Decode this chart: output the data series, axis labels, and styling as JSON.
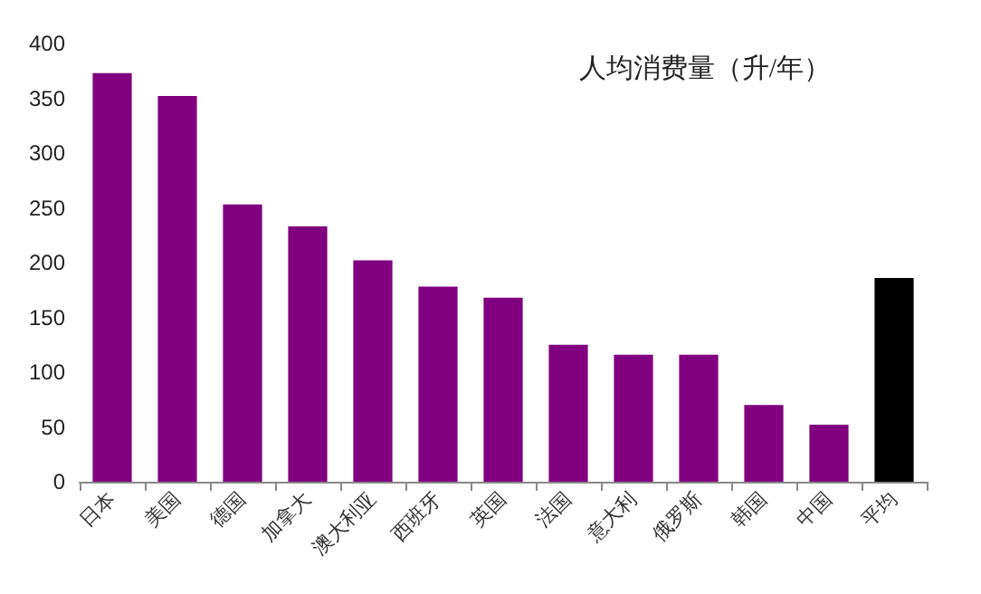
{
  "chart_data": {
    "type": "bar",
    "title": "人均消费量（升/年）",
    "categories": [
      "日本",
      "美国",
      "德国",
      "加拿大",
      "澳大利亚",
      "西班牙",
      "英国",
      "法国",
      "意大利",
      "俄罗斯",
      "韩国",
      "中国",
      "平均"
    ],
    "values": [
      373,
      352,
      253,
      233,
      202,
      178,
      168,
      125,
      116,
      116,
      70,
      52,
      186
    ],
    "colors": [
      "#800080",
      "#800080",
      "#800080",
      "#800080",
      "#800080",
      "#800080",
      "#800080",
      "#800080",
      "#800080",
      "#800080",
      "#800080",
      "#800080",
      "#000000"
    ],
    "ylim": [
      0,
      400
    ],
    "yticks": [
      0,
      50,
      100,
      150,
      200,
      250,
      300,
      350,
      400
    ],
    "grid": false
  }
}
